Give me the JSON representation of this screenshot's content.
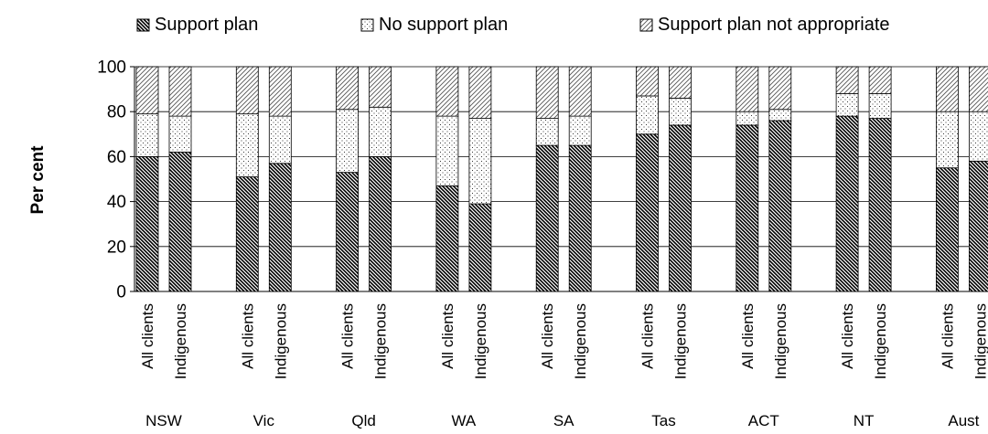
{
  "chart_data": {
    "type": "bar",
    "stacked": true,
    "title": "",
    "ylabel": "Per cent",
    "xlabel": "",
    "ylim": [
      0,
      100
    ],
    "yticks": [
      0,
      20,
      40,
      60,
      80,
      100
    ],
    "grid": true,
    "legend_position": "top",
    "groups": [
      "NSW",
      "Vic",
      "Qld",
      "WA",
      "SA",
      "Tas",
      "ACT",
      "NT",
      "Aust"
    ],
    "subcategories": [
      "All clients",
      "Indigenous"
    ],
    "series": [
      {
        "name": "Support plan",
        "pattern": "dense-diagonal",
        "values": [
          60,
          62,
          51,
          57,
          53,
          60,
          47,
          39,
          65,
          65,
          70,
          74,
          74,
          76,
          78,
          77,
          55,
          58
        ]
      },
      {
        "name": "No support plan",
        "pattern": "dots",
        "values": [
          19,
          16,
          28,
          21,
          28,
          22,
          31,
          38,
          12,
          13,
          17,
          12,
          6,
          5,
          10,
          11,
          25,
          22
        ]
      },
      {
        "name": "Support plan not appropriate",
        "pattern": "light-diagonal",
        "values": [
          21,
          22,
          21,
          22,
          19,
          18,
          22,
          23,
          23,
          22,
          13,
          14,
          20,
          19,
          12,
          12,
          20,
          20
        ]
      }
    ]
  }
}
